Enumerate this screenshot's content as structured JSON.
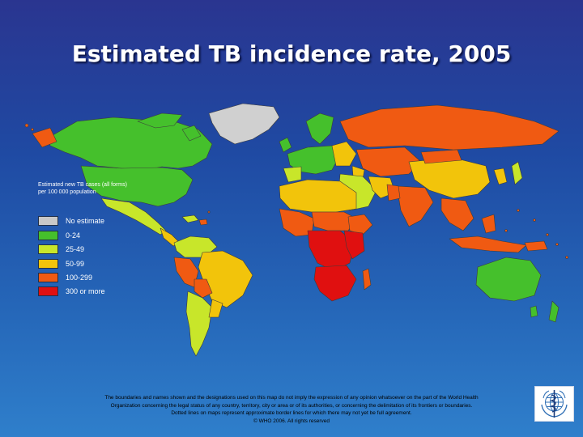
{
  "title": "Estimated TB incidence rate, 2005",
  "legend": {
    "title": "Estimated new TB cases (all forms) per 100 000 population",
    "items": [
      {
        "label": "No estimate",
        "color": "#c8c8c8"
      },
      {
        "label": "0-24",
        "color": "#45c02c"
      },
      {
        "label": "25-49",
        "color": "#c8e62a"
      },
      {
        "label": "50-99",
        "color": "#f2c40b"
      },
      {
        "label": "100-299",
        "color": "#f05a12"
      },
      {
        "label": "300 or more",
        "color": "#e01010"
      }
    ]
  },
  "disclaimer": {
    "line1": "The boundaries and names shown and the designations used on this map do not imply the expression of any opinion whatsoever on the part of the World Health",
    "line2": "Organization concerning the legal status of any country, territory, city or area or of its authorities, or concerning the delimitation of its frontiers or boundaries.",
    "line3": "Dotted lines on maps represent approximate border lines for which there may not yet be full agreement.",
    "copyright": "© WHO 2006. All rights reserved"
  },
  "logo": {
    "icon": "who-emblem-icon"
  },
  "colors": {
    "background_top": "#2a3590",
    "background_bottom": "#2f7fcb",
    "border": "#444444"
  }
}
